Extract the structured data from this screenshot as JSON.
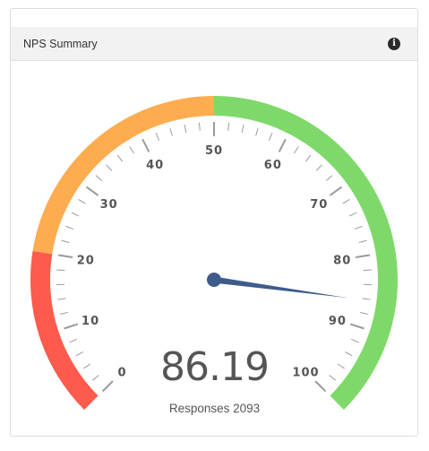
{
  "header": {
    "title": "NPS Summary",
    "info_icon": "info-icon"
  },
  "gauge": {
    "value": 86.19,
    "value_text": "86.19",
    "min": 0,
    "max": 100,
    "tick_labels": [
      "0",
      "10",
      "20",
      "30",
      "40",
      "50",
      "60",
      "70",
      "80",
      "90",
      "100"
    ],
    "bands": [
      {
        "from": 0,
        "to": 20,
        "color": "#fe5a4d"
      },
      {
        "from": 20,
        "to": 50,
        "color": "#fdac50"
      },
      {
        "from": 50,
        "to": 100,
        "color": "#7ed96a"
      }
    ],
    "needle_color": "#3e5c8a"
  },
  "footer": {
    "responses_text": "Responses 2093"
  }
}
